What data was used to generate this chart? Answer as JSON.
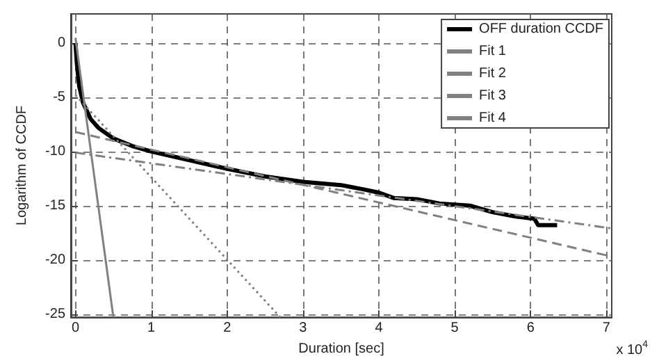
{
  "chart_data": {
    "type": "line",
    "xlabel": "Duration [sec]",
    "ylabel": "Logarithm of CCDF",
    "annotations": [
      "x 10$^{4}$"
    ],
    "xlim": [
      -0.06,
      7.07
    ],
    "xticks": [
      0,
      1,
      2,
      3,
      4,
      5,
      6,
      7
    ],
    "ylim": [
      -25.3,
      2.7
    ],
    "yticks": [
      -25,
      -20,
      -15,
      -10,
      -5,
      0
    ],
    "grid": true,
    "legend": "top right",
    "marker": "none",
    "series": [
      {
        "name": "OFF duration CCDF",
        "color": "#000000",
        "line_style": "solid",
        "x": [
          0,
          0.02,
          0.05,
          0.1,
          0.2,
          0.3,
          0.5,
          0.75,
          1,
          1.5,
          2,
          2.5,
          3,
          3.5,
          3.8,
          4,
          4.2,
          4.5,
          4.8,
          5.2,
          5.5,
          5.8,
          6.05,
          6.1,
          6.35
        ],
        "values": [
          0,
          -2,
          -4,
          -5.5,
          -7,
          -7.8,
          -8.8,
          -9.5,
          -10,
          -10.8,
          -11.6,
          -12.3,
          -12.8,
          -13.1,
          -13.5,
          -13.8,
          -14.3,
          -14.4,
          -14.8,
          -15,
          -15.6,
          -16,
          -16.2,
          -16.8,
          -16.8
        ]
      },
      {
        "name": "Fit 1",
        "color": "#808080",
        "line_style": "solid",
        "x": [
          0,
          0.5
        ],
        "values": [
          0.5,
          -25.3
        ]
      },
      {
        "name": "Fit 2",
        "color": "#808080",
        "line_style": "dotted",
        "x": [
          0,
          2.7
        ],
        "values": [
          -4.8,
          -25.3
        ]
      },
      {
        "name": "Fit 3",
        "color": "#808080",
        "line_style": "dashed",
        "x": [
          0,
          7.07
        ],
        "values": [
          -8.2,
          -19.7
        ]
      },
      {
        "name": "Fit 4",
        "color": "#808080",
        "line_style": "dashdot",
        "x": [
          0,
          7.07
        ],
        "values": [
          -10.1,
          -17.1
        ]
      }
    ]
  }
}
